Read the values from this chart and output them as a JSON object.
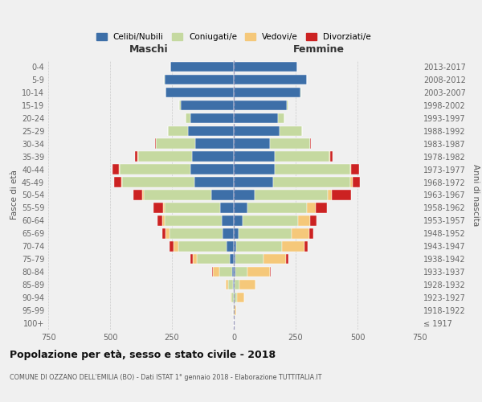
{
  "age_groups": [
    "100+",
    "95-99",
    "90-94",
    "85-89",
    "80-84",
    "75-79",
    "70-74",
    "65-69",
    "60-64",
    "55-59",
    "50-54",
    "45-49",
    "40-44",
    "35-39",
    "30-34",
    "25-29",
    "20-24",
    "15-19",
    "10-14",
    "5-9",
    "0-4"
  ],
  "birth_years": [
    "≤ 1917",
    "1918-1922",
    "1923-1927",
    "1928-1932",
    "1933-1937",
    "1938-1942",
    "1943-1947",
    "1948-1952",
    "1953-1957",
    "1958-1962",
    "1963-1967",
    "1968-1972",
    "1973-1977",
    "1978-1982",
    "1983-1987",
    "1988-1992",
    "1993-1997",
    "1998-2002",
    "2003-2007",
    "2008-2012",
    "2013-2017"
  ],
  "colors": {
    "celibi": "#3d6fa8",
    "coniugati": "#c5d9a0",
    "vedovi": "#f5c87a",
    "divorziati": "#cc2222"
  },
  "male": {
    "celibi": [
      0,
      0,
      1,
      2,
      5,
      15,
      30,
      45,
      50,
      55,
      90,
      160,
      175,
      170,
      155,
      185,
      175,
      215,
      275,
      280,
      255
    ],
    "coniugati": [
      0,
      2,
      8,
      20,
      55,
      135,
      195,
      215,
      230,
      225,
      275,
      290,
      285,
      215,
      160,
      80,
      20,
      5,
      2,
      2,
      0
    ],
    "vedovi": [
      0,
      1,
      5,
      12,
      25,
      15,
      20,
      15,
      10,
      5,
      5,
      5,
      5,
      3,
      0,
      0,
      0,
      0,
      0,
      0,
      0
    ],
    "divorziati": [
      0,
      0,
      0,
      0,
      3,
      10,
      15,
      15,
      20,
      40,
      35,
      30,
      25,
      10,
      3,
      0,
      0,
      0,
      0,
      0,
      0
    ]
  },
  "female": {
    "celibi": [
      0,
      0,
      2,
      2,
      5,
      5,
      10,
      20,
      35,
      55,
      85,
      160,
      165,
      165,
      145,
      185,
      180,
      215,
      270,
      295,
      255
    ],
    "coniugati": [
      0,
      2,
      10,
      20,
      50,
      115,
      185,
      215,
      225,
      240,
      295,
      310,
      305,
      220,
      165,
      90,
      25,
      5,
      2,
      2,
      0
    ],
    "vedovi": [
      1,
      8,
      30,
      65,
      90,
      90,
      90,
      70,
      50,
      35,
      15,
      10,
      5,
      3,
      0,
      0,
      0,
      0,
      0,
      0,
      0
    ],
    "divorziati": [
      0,
      0,
      0,
      2,
      5,
      10,
      15,
      15,
      25,
      45,
      80,
      30,
      30,
      10,
      2,
      0,
      0,
      0,
      0,
      0,
      0
    ]
  },
  "title": "Popolazione per età, sesso e stato civile - 2018",
  "subtitle": "COMUNE DI OZZANO DELL'EMILIA (BO) - Dati ISTAT 1° gennaio 2018 - Elaborazione TUTTITALIA.IT",
  "xlabel_left": "Maschi",
  "xlabel_right": "Femmine",
  "ylabel_left": "Fasce di età",
  "ylabel_right": "Anni di nascita",
  "xlim": 750,
  "legend_labels": [
    "Celibi/Nubili",
    "Coniugati/e",
    "Vedovi/e",
    "Divorziati/e"
  ],
  "background_color": "#f0f0f0",
  "grid_color": "#cccccc"
}
